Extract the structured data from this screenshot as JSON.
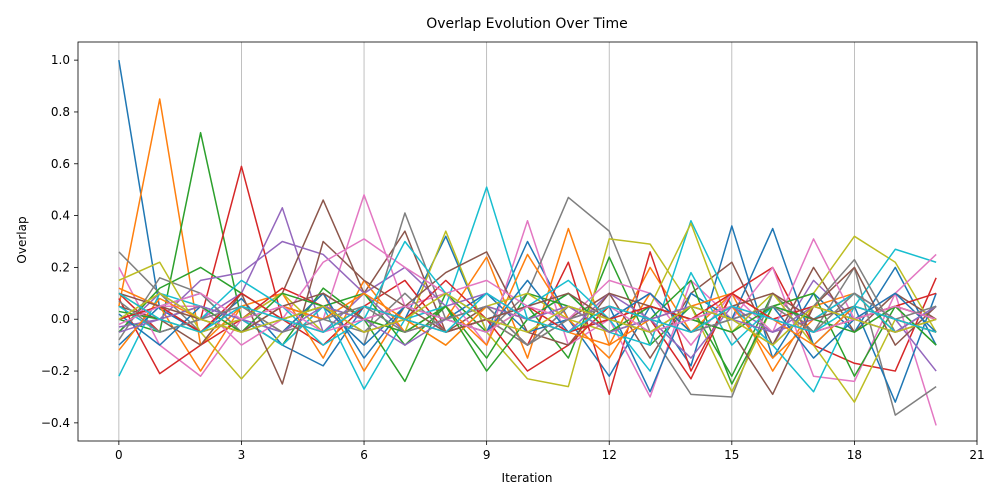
{
  "chart_data": {
    "type": "line",
    "title": "Overlap Evolution Over Time",
    "xlabel": "Iteration",
    "ylabel": "Overlap",
    "xlim": [
      -1,
      21
    ],
    "ylim": [
      -0.47,
      1.07
    ],
    "xticks": [
      0,
      3,
      6,
      9,
      12,
      15,
      18,
      21
    ],
    "xtick_labels": [
      "0",
      "3",
      "6",
      "9",
      "12",
      "15",
      "18",
      "21"
    ],
    "yticks": [
      -0.4,
      -0.2,
      0.0,
      0.2,
      0.4,
      0.6,
      0.8,
      1.0
    ],
    "ytick_labels": [
      "−0.4",
      "−0.2",
      "0.0",
      "0.2",
      "0.4",
      "0.6",
      "0.8",
      "1.0"
    ],
    "grid": "vertical",
    "legend": "none",
    "x": [
      0,
      1,
      2,
      3,
      4,
      5,
      6,
      7,
      8,
      9,
      10,
      11,
      12,
      13,
      14,
      15,
      16,
      17,
      18,
      19,
      20
    ],
    "series": [
      {
        "color": "#1f77b4",
        "values": [
          1.0,
          0.04,
          -0.05,
          0.08,
          -0.1,
          -0.18,
          0.05,
          0.0,
          0.32,
          -0.05,
          0.3,
          0.0,
          -0.22,
          0.05,
          -0.18,
          0.36,
          -0.15,
          0.1,
          -0.05,
          0.2,
          -0.1
        ]
      },
      {
        "color": "#ff7f0e",
        "values": [
          0.05,
          0.85,
          -0.1,
          0.05,
          -0.05,
          0.1,
          -0.2,
          0.05,
          0.0,
          0.24,
          -0.15,
          0.35,
          -0.1,
          0.2,
          -0.05,
          0.1,
          -0.2,
          0.05,
          0.1,
          -0.05,
          0.0
        ]
      },
      {
        "color": "#2ca02c",
        "values": [
          0.0,
          -0.05,
          0.72,
          0.0,
          -0.1,
          0.12,
          0.0,
          -0.24,
          0.1,
          -0.05,
          0.05,
          -0.15,
          0.24,
          -0.1,
          0.05,
          -0.22,
          0.1,
          -0.05,
          0.0,
          0.05,
          -0.1
        ]
      },
      {
        "color": "#d62728",
        "values": [
          0.1,
          -0.05,
          0.0,
          0.59,
          0.0,
          -0.1,
          0.05,
          0.15,
          -0.05,
          0.0,
          -0.1,
          0.22,
          -0.29,
          0.26,
          -0.2,
          0.1,
          0.2,
          -0.1,
          -0.17,
          -0.2,
          0.16
        ]
      },
      {
        "color": "#9467bd",
        "values": [
          -0.05,
          0.1,
          0.0,
          0.1,
          0.43,
          -0.05,
          0.1,
          -0.05,
          0.0,
          0.05,
          -0.1,
          0.05,
          0.0,
          0.1,
          -0.05,
          0.05,
          -0.1,
          0.15,
          0.0,
          -0.05,
          0.05
        ]
      },
      {
        "color": "#8c564b",
        "values": [
          0.0,
          0.05,
          -0.05,
          0.0,
          0.1,
          0.46,
          0.1,
          0.34,
          -0.05,
          0.05,
          -0.1,
          0.0,
          0.1,
          -0.15,
          0.1,
          0.22,
          -0.1,
          0.2,
          -0.05,
          0.1,
          0.0
        ]
      },
      {
        "color": "#e377c2",
        "values": [
          0.2,
          -0.1,
          -0.22,
          0.0,
          0.05,
          0.0,
          0.48,
          0.05,
          0.1,
          -0.1,
          0.38,
          -0.1,
          0.0,
          -0.3,
          0.15,
          0.0,
          0.2,
          -0.22,
          -0.24,
          0.1,
          -0.41
        ]
      },
      {
        "color": "#7f7f7f",
        "values": [
          0.26,
          0.1,
          -0.05,
          0.0,
          -0.1,
          0.05,
          -0.1,
          0.41,
          0.0,
          -0.05,
          0.1,
          0.47,
          0.34,
          -0.05,
          -0.29,
          -0.3,
          0.1,
          -0.05,
          0.2,
          -0.37,
          -0.26
        ]
      },
      {
        "color": "#bcbd22",
        "values": [
          0.1,
          0.0,
          -0.05,
          -0.23,
          -0.05,
          0.1,
          0.0,
          -0.05,
          0.34,
          -0.05,
          -0.23,
          -0.26,
          0.31,
          0.29,
          0.05,
          -0.28,
          0.05,
          0.1,
          0.32,
          0.22,
          -0.05
        ]
      },
      {
        "color": "#17becf",
        "values": [
          -0.22,
          0.1,
          0.05,
          0.0,
          -0.1,
          0.05,
          -0.27,
          0.0,
          0.05,
          0.51,
          0.0,
          0.1,
          -0.05,
          -0.1,
          0.38,
          0.05,
          -0.1,
          -0.28,
          0.05,
          0.27,
          0.22
        ]
      },
      {
        "color": "#1f77b4",
        "values": [
          -0.1,
          0.05,
          0.1,
          -0.05,
          0.0,
          0.05,
          -0.1,
          0.05,
          0.0,
          0.1,
          -0.05,
          0.0,
          0.05,
          -0.28,
          0.1,
          0.0,
          0.35,
          -0.1,
          0.05,
          -0.32,
          0.1
        ]
      },
      {
        "color": "#ff7f0e",
        "values": [
          0.12,
          0.05,
          -0.2,
          0.05,
          0.1,
          -0.15,
          0.15,
          -0.05,
          0.05,
          -0.1,
          0.25,
          0.0,
          -0.15,
          0.1,
          -0.05,
          0.05,
          -0.15,
          0.0,
          0.1,
          -0.05,
          0.05
        ]
      },
      {
        "color": "#2ca02c",
        "values": [
          -0.05,
          0.12,
          0.2,
          0.1,
          0.0,
          0.05,
          0.1,
          -0.1,
          0.05,
          -0.15,
          0.1,
          0.05,
          -0.05,
          0.0,
          0.15,
          -0.25,
          0.05,
          0.1,
          -0.22,
          0.05,
          0.0
        ]
      },
      {
        "color": "#d62728",
        "values": [
          0.08,
          -0.21,
          -0.1,
          0.0,
          0.12,
          0.05,
          -0.05,
          0.0,
          0.15,
          0.0,
          -0.2,
          -0.1,
          0.05,
          0.0,
          -0.23,
          0.1,
          0.0,
          0.05,
          0.0,
          0.05,
          0.1
        ]
      },
      {
        "color": "#9467bd",
        "values": [
          -0.03,
          0.0,
          0.15,
          0.18,
          0.3,
          0.25,
          0.1,
          0.2,
          0.05,
          0.1,
          0.0,
          -0.05,
          0.1,
          0.0,
          -0.15,
          0.05,
          -0.05,
          0.0,
          0.1,
          0.0,
          -0.2
        ]
      },
      {
        "color": "#8c564b",
        "values": [
          0.05,
          0.0,
          -0.1,
          0.1,
          -0.25,
          0.3,
          0.15,
          0.05,
          0.18,
          0.26,
          -0.05,
          -0.1,
          0.1,
          0.05,
          0.0,
          -0.05,
          -0.29,
          0.05,
          0.2,
          -0.1,
          0.05
        ]
      },
      {
        "color": "#e377c2",
        "values": [
          0.0,
          0.05,
          0.05,
          -0.1,
          0.0,
          0.22,
          0.31,
          0.2,
          0.1,
          0.15,
          0.05,
          0.0,
          0.15,
          0.1,
          -0.1,
          0.1,
          -0.05,
          0.31,
          0.0,
          0.1,
          0.25
        ]
      },
      {
        "color": "#7f7f7f",
        "values": [
          -0.08,
          0.16,
          0.1,
          -0.05,
          0.05,
          0.0,
          -0.05,
          0.1,
          -0.05,
          0.0,
          -0.1,
          0.05,
          0.0,
          -0.05,
          0.05,
          0.0,
          -0.1,
          0.05,
          0.23,
          -0.05,
          0.0
        ]
      },
      {
        "color": "#bcbd22",
        "values": [
          0.15,
          0.22,
          -0.05,
          0.0,
          0.1,
          -0.05,
          0.05,
          0.0,
          -0.1,
          0.05,
          0.1,
          0.0,
          -0.05,
          0.05,
          0.37,
          -0.05,
          0.1,
          -0.1,
          -0.32,
          0.0,
          -0.05
        ]
      },
      {
        "color": "#17becf",
        "values": [
          0.05,
          -0.05,
          0.0,
          0.15,
          0.05,
          -0.1,
          0.0,
          0.3,
          0.1,
          0.0,
          0.05,
          0.15,
          0.0,
          -0.2,
          0.18,
          -0.1,
          0.05,
          0.0,
          0.1,
          -0.05,
          0.05
        ]
      },
      {
        "color": "#1f77b4",
        "values": [
          0.02,
          -0.1,
          0.05,
          0.0,
          -0.05,
          0.1,
          -0.15,
          0.05,
          0.0,
          -0.05,
          0.15,
          -0.05,
          0.0,
          0.1,
          -0.05,
          0.0,
          0.05,
          -0.15,
          0.0,
          0.1,
          -0.05
        ]
      },
      {
        "color": "#ff7f0e",
        "values": [
          -0.12,
          0.08,
          0.0,
          -0.05,
          0.05,
          0.0,
          0.1,
          0.0,
          -0.1,
          0.05,
          0.0,
          -0.05,
          -0.1,
          0.0,
          0.05,
          0.1,
          0.0,
          -0.1,
          0.05,
          0.0,
          -0.05
        ]
      },
      {
        "color": "#2ca02c",
        "values": [
          0.03,
          0.0,
          0.05,
          -0.05,
          0.1,
          0.05,
          0.0,
          -0.05,
          0.05,
          -0.2,
          0.0,
          0.1,
          -0.05,
          0.05,
          0.0,
          -0.05,
          0.05,
          0.0,
          -0.05,
          0.05,
          -0.1
        ]
      },
      {
        "color": "#d62728",
        "values": [
          0.0,
          0.05,
          -0.05,
          0.1,
          0.0,
          -0.05,
          0.05,
          0.0,
          -0.05,
          0.0,
          0.05,
          -0.05,
          0.0,
          0.05,
          0.0,
          0.1,
          0.0,
          -0.05,
          0.0,
          0.05,
          0.0
        ]
      },
      {
        "color": "#9467bd",
        "values": [
          -0.05,
          0.0,
          0.05,
          0.0,
          -0.05,
          0.05,
          0.0,
          -0.1,
          0.0,
          0.05,
          0.0,
          0.05,
          -0.05,
          0.0,
          0.05,
          0.0,
          -0.05,
          0.05,
          0.0,
          -0.05,
          0.05
        ]
      },
      {
        "color": "#8c564b",
        "values": [
          0.1,
          0.05,
          0.0,
          -0.05,
          0.05,
          0.1,
          0.0,
          0.05,
          -0.05,
          0.0,
          0.05,
          0.1,
          0.0,
          -0.05,
          0.0,
          0.05,
          0.1,
          0.0,
          0.05,
          0.0,
          -0.05
        ]
      },
      {
        "color": "#e377c2",
        "values": [
          -0.02,
          0.05,
          0.1,
          0.0,
          0.05,
          -0.05,
          0.0,
          0.05,
          0.0,
          -0.05,
          0.05,
          0.0,
          0.05,
          -0.05,
          0.0,
          0.05,
          0.0,
          -0.05,
          0.0,
          0.05,
          0.0
        ]
      },
      {
        "color": "#7f7f7f",
        "values": [
          0.07,
          -0.05,
          0.0,
          0.05,
          -0.05,
          0.0,
          0.05,
          -0.05,
          0.0,
          0.05,
          -0.1,
          0.0,
          0.05,
          0.0,
          -0.05,
          0.0,
          0.05,
          -0.05,
          0.1,
          0.0,
          0.05
        ]
      },
      {
        "color": "#bcbd22",
        "values": [
          0.0,
          0.1,
          0.0,
          -0.05,
          0.0,
          0.05,
          -0.05,
          0.0,
          0.1,
          0.0,
          -0.05,
          0.05,
          0.0,
          -0.05,
          0.05,
          0.0,
          -0.1,
          0.05,
          0.0,
          -0.05,
          0.0
        ]
      },
      {
        "color": "#17becf",
        "values": [
          0.1,
          0.0,
          -0.05,
          0.05,
          0.0,
          -0.05,
          0.05,
          0.0,
          -0.05,
          0.1,
          0.0,
          -0.05,
          0.05,
          0.0,
          -0.05,
          0.05,
          0.0,
          -0.05,
          0.05,
          0.0,
          -0.05
        ]
      }
    ]
  }
}
